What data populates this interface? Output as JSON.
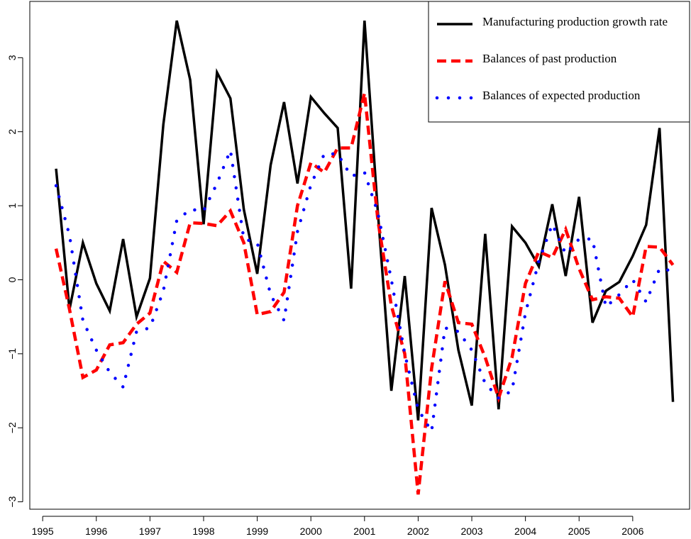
{
  "chart_data": {
    "type": "line",
    "x": [
      1995.25,
      1995.5,
      1995.75,
      1996,
      1996.25,
      1996.5,
      1996.75,
      1997,
      1997.25,
      1997.5,
      1997.75,
      1998,
      1998.25,
      1998.5,
      1998.75,
      1999,
      1999.25,
      1999.5,
      1999.75,
      2000,
      2000.25,
      2000.5,
      2000.75,
      2001,
      2001.25,
      2001.5,
      2001.75,
      2002,
      2002.25,
      2002.5,
      2002.75,
      2003,
      2003.25,
      2003.5,
      2003.75,
      2004,
      2004.25,
      2004.5,
      2004.75,
      2005,
      2005.25,
      2005.5,
      2005.75,
      2006,
      2006.25,
      2006.5,
      2006.75
    ],
    "series": [
      {
        "name": "Manufacturing production growth rate",
        "color": "#000000",
        "style": "solid",
        "values": [
          1.5,
          -0.4,
          0.5,
          -0.05,
          -0.42,
          0.55,
          -0.5,
          0.02,
          2.1,
          3.5,
          2.7,
          0.75,
          2.8,
          2.45,
          0.95,
          0.08,
          1.55,
          2.4,
          1.3,
          2.47,
          2.25,
          2.05,
          -0.12,
          3.5,
          0.9,
          -1.5,
          0.05,
          -1.9,
          0.97,
          0.2,
          -0.95,
          -1.7,
          0.62,
          -1.75,
          0.72,
          0.5,
          0.18,
          1.02,
          0.05,
          1.12,
          -0.58,
          -0.15,
          -0.03,
          0.32,
          0.74,
          2.05,
          -1.65
        ]
      },
      {
        "name": "Balances of past production",
        "color": "#ff0000",
        "style": "dashed",
        "values": [
          0.42,
          -0.4,
          -1.32,
          -1.22,
          -0.88,
          -0.85,
          -0.6,
          -0.45,
          0.25,
          0.1,
          0.77,
          0.76,
          0.73,
          0.93,
          0.5,
          -0.47,
          -0.43,
          -0.17,
          1.0,
          1.58,
          1.45,
          1.78,
          1.78,
          2.52,
          0.8,
          -0.35,
          -1.0,
          -2.9,
          -1.2,
          -0.02,
          -0.58,
          -0.6,
          -1.05,
          -1.6,
          -1.05,
          -0.05,
          0.38,
          0.3,
          0.68,
          0.15,
          -0.27,
          -0.23,
          -0.25,
          -0.5,
          0.45,
          0.44,
          0.2
        ]
      },
      {
        "name": "Balances of expected production",
        "color": "#0000ff",
        "style": "dotted",
        "values": [
          1.27,
          0.6,
          -0.55,
          -0.95,
          -1.25,
          -1.45,
          -0.7,
          -0.65,
          -0.15,
          0.8,
          0.95,
          0.93,
          1.3,
          1.75,
          0.55,
          0.5,
          -0.2,
          -0.55,
          0.65,
          1.28,
          1.7,
          1.7,
          1.4,
          1.45,
          0.9,
          0.0,
          -1.0,
          -1.75,
          -2.05,
          -0.65,
          -0.7,
          -0.95,
          -1.4,
          -1.6,
          -1.5,
          -0.45,
          0.25,
          0.75,
          0.35,
          0.55,
          0.55,
          -0.37,
          -0.2,
          0.0,
          -0.3,
          0.15,
          0.12
        ]
      }
    ],
    "xlim": [
      1994.76,
      2007.06
    ],
    "ylim": [
      -3.1,
      3.76
    ],
    "xticks": [
      1995,
      1996,
      1997,
      1998,
      1999,
      2000,
      2001,
      2002,
      2003,
      2004,
      2005,
      2006
    ],
    "yticks": [
      {
        "value": -3,
        "label": "−3"
      },
      {
        "value": -2,
        "label": "−2"
      },
      {
        "value": -1,
        "label": "−1"
      },
      0,
      1,
      2,
      3
    ],
    "legend": "top-right"
  }
}
